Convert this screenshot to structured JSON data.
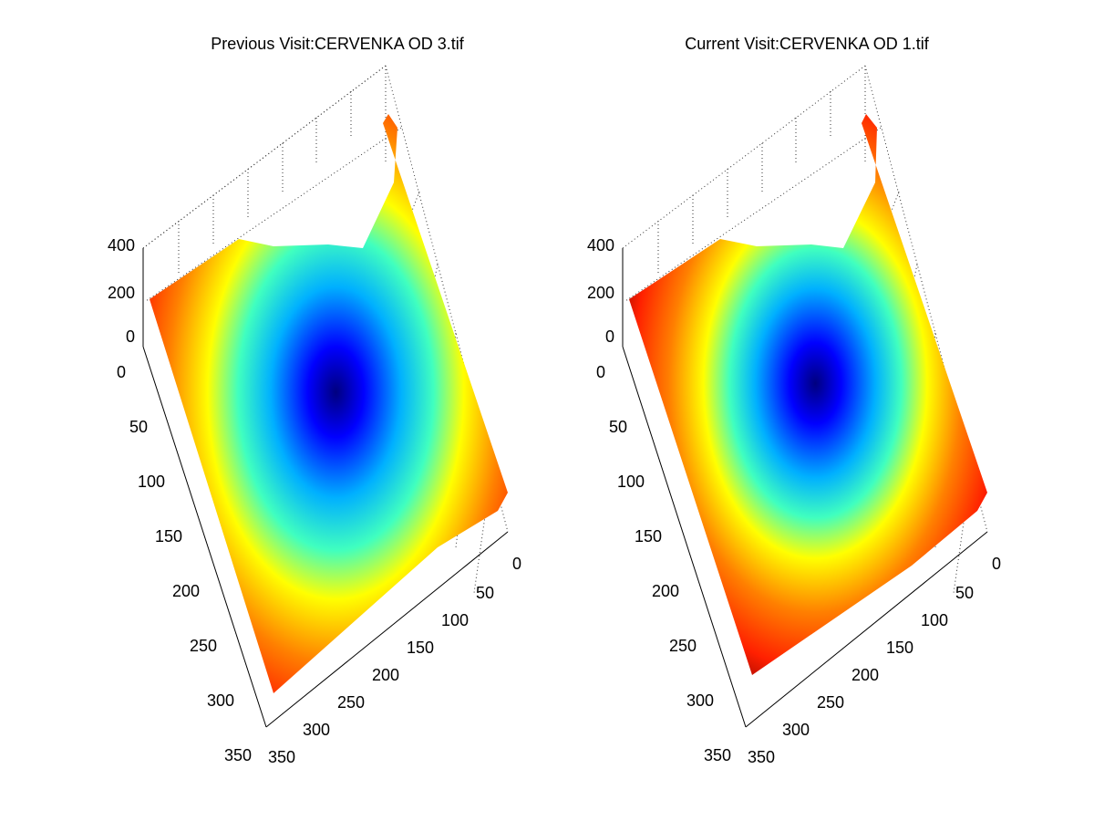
{
  "chart_data": [
    {
      "type": "surface",
      "title": "Previous Visit:CERVENKA OD 3.tif",
      "xlim": [
        0,
        350
      ],
      "ylim": [
        0,
        350
      ],
      "zlim": [
        0,
        400
      ],
      "x_ticks": [
        "0",
        "50",
        "100",
        "150",
        "200",
        "250",
        "300",
        "350"
      ],
      "y_ticks": [
        "0",
        "50",
        "100",
        "150",
        "200",
        "250",
        "300",
        "350"
      ],
      "z_ticks": [
        "0",
        "200",
        "400"
      ],
      "grid": true,
      "colormap": "jet",
      "pit_center": [
        120,
        150
      ],
      "upper_notch": true
    },
    {
      "type": "surface",
      "title": "Current Visit:CERVENKA OD 1.tif",
      "xlim": [
        0,
        350
      ],
      "ylim": [
        0,
        350
      ],
      "zlim": [
        0,
        400
      ],
      "x_ticks": [
        "0",
        "50",
        "100",
        "150",
        "200",
        "250",
        "300",
        "350"
      ],
      "y_ticks": [
        "0",
        "50",
        "100",
        "150",
        "200",
        "250",
        "300",
        "350"
      ],
      "z_ticks": [
        "0",
        "200",
        "400"
      ],
      "grid": true,
      "colormap": "jet",
      "pit_center": [
        120,
        150
      ],
      "upper_notch": true
    }
  ]
}
